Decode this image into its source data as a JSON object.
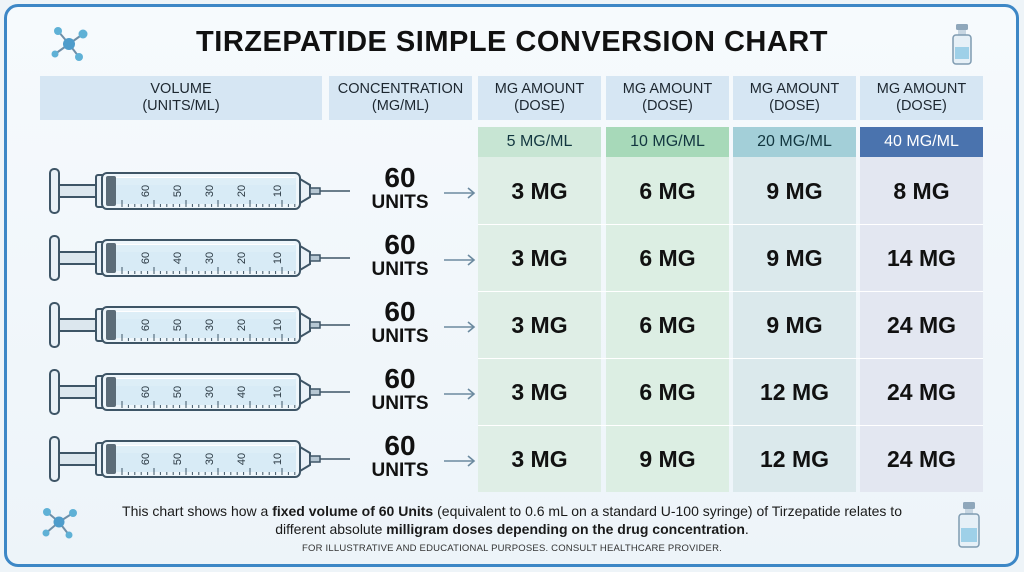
{
  "title": "TIRZEPATIDE SIMPLE CONVERSION CHART",
  "headers": [
    {
      "line1": "VOLUME",
      "line2": "(UNITS/ML)"
    },
    {
      "line1": "CONCENTRATION",
      "line2": "(MG/ML)"
    },
    {
      "line1": "MG AMOUNT",
      "line2": "(DOSE)"
    },
    {
      "line1": "MG AMOUNT",
      "line2": "(DOSE)"
    },
    {
      "line1": "MG AMOUNT",
      "line2": "(DOSE)"
    },
    {
      "line1": "MG AMOUNT",
      "line2": "(DOSE)"
    }
  ],
  "colors": {
    "frame": "#3d87c6",
    "header_bg": "#d6e6f3",
    "col_5": "#dfeee6",
    "col_10": "#dceee3",
    "col_20": "#dbe9ec",
    "col_40": "#e3e7f1",
    "conc_5": "#c7e5d3",
    "conc_10": "#a7d9b9",
    "conc_20": "#a3cfd8",
    "conc_40": "#4a73ae"
  },
  "chart_data": {
    "type": "table",
    "title": "TIRZEPATIDE SIMPLE CONVERSION CHART",
    "concentrations": [
      "5 MG/ML",
      "10 MG/ML",
      "20 MG/ML",
      "40 MG/ML"
    ],
    "rows": [
      {
        "units": "60",
        "unit_label": "UNITS",
        "syringe_ticks": [
          "60",
          "50",
          "30",
          "20",
          "10"
        ],
        "doses": [
          "3 MG",
          "6 MG",
          "9 MG",
          "8 MG"
        ]
      },
      {
        "units": "60",
        "unit_label": "UNITS",
        "syringe_ticks": [
          "60",
          "40",
          "30",
          "20",
          "10"
        ],
        "doses": [
          "3 MG",
          "6 MG",
          "9 MG",
          "14 MG"
        ]
      },
      {
        "units": "60",
        "unit_label": "UNITS",
        "syringe_ticks": [
          "60",
          "50",
          "30",
          "20",
          "10"
        ],
        "doses": [
          "3 MG",
          "6 MG",
          "9 MG",
          "24 MG"
        ]
      },
      {
        "units": "60",
        "unit_label": "UNITS",
        "syringe_ticks": [
          "60",
          "50",
          "30",
          "40",
          "10"
        ],
        "doses": [
          "3 MG",
          "6 MG",
          "12 MG",
          "24 MG"
        ]
      },
      {
        "units": "60",
        "unit_label": "UNITS",
        "syringe_ticks": [
          "60",
          "50",
          "30",
          "40",
          "10"
        ],
        "doses": [
          "3 MG",
          "9 MG",
          "12 MG",
          "24 MG"
        ]
      }
    ]
  },
  "description": {
    "p1": "This chart shows how a ",
    "b1": "fixed volume of 60 Units",
    "p2": " (equivalent to 0.6 mL on a standard U-100 syringe) of Tirzepatide relates to different absolute ",
    "b2": "milligram doses depending on the drug concentration",
    "p3": "."
  },
  "footnote": "FOR ILLUSTRATIVE AND EDUCATIONAL PURPOSES. CONSULT HEALTHCARE PROVIDER.",
  "icons": [
    "molecule-icon",
    "vial-icon",
    "molecule-icon",
    "vial-icon",
    "syringe-icon",
    "arrow-right-icon"
  ]
}
